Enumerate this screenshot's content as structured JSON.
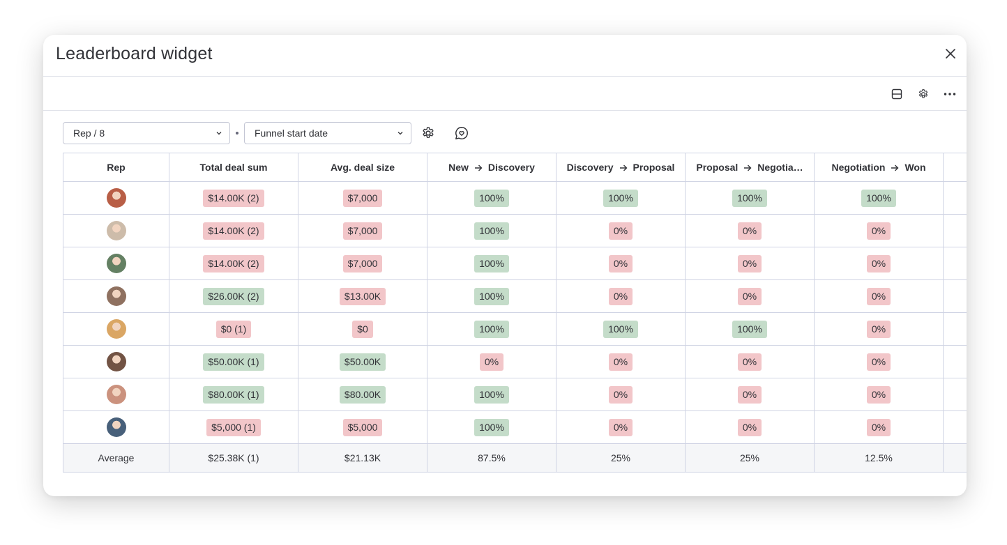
{
  "window": {
    "title": "Leaderboard widget"
  },
  "toolbar": {
    "icons": [
      "layout-icon",
      "gear-icon",
      "more-icon"
    ]
  },
  "filters": {
    "group_by": "Rep / 8",
    "date_field": "Funnel start date"
  },
  "table": {
    "headers": {
      "rep": "Rep",
      "total": "Total deal sum",
      "avg": "Avg. deal size",
      "s1_from": "New",
      "s1_to": "Discovery",
      "s2_from": "Discovery",
      "s2_to": "Proposal",
      "s3_from": "Proposal",
      "s3_to": "Negotia…",
      "s4_from": "Negotiation",
      "s4_to": "Won"
    },
    "rows": [
      {
        "avatar": "#b5563d",
        "total": "$14.00K (2)",
        "total_status": "red",
        "avg": "$7,000",
        "avg_status": "red",
        "s1": "100%",
        "s1_status": "green",
        "s2": "100%",
        "s2_status": "green",
        "s3": "100%",
        "s3_status": "green",
        "s4": "100%",
        "s4_status": "green"
      },
      {
        "avatar": "#cbb9a6",
        "total": "$14.00K (2)",
        "total_status": "red",
        "avg": "$7,000",
        "avg_status": "red",
        "s1": "100%",
        "s1_status": "green",
        "s2": "0%",
        "s2_status": "red",
        "s3": "0%",
        "s3_status": "red",
        "s4": "0%",
        "s4_status": "red"
      },
      {
        "avatar": "#5c7a5b",
        "total": "$14.00K (2)",
        "total_status": "red",
        "avg": "$7,000",
        "avg_status": "red",
        "s1": "100%",
        "s1_status": "green",
        "s2": "0%",
        "s2_status": "red",
        "s3": "0%",
        "s3_status": "red",
        "s4": "0%",
        "s4_status": "red"
      },
      {
        "avatar": "#8a6a58",
        "total": "$26.00K (2)",
        "total_status": "green",
        "avg": "$13.00K",
        "avg_status": "red",
        "s1": "100%",
        "s1_status": "green",
        "s2": "0%",
        "s2_status": "red",
        "s3": "0%",
        "s3_status": "red",
        "s4": "0%",
        "s4_status": "red"
      },
      {
        "avatar": "#d9a25c",
        "total": "$0 (1)",
        "total_status": "red",
        "avg": "$0",
        "avg_status": "red",
        "s1": "100%",
        "s1_status": "green",
        "s2": "100%",
        "s2_status": "green",
        "s3": "100%",
        "s3_status": "green",
        "s4": "0%",
        "s4_status": "red"
      },
      {
        "avatar": "#6b4a3a",
        "total": "$50.00K (1)",
        "total_status": "green",
        "avg": "$50.00K",
        "avg_status": "green",
        "s1": "0%",
        "s1_status": "red",
        "s2": "0%",
        "s2_status": "red",
        "s3": "0%",
        "s3_status": "red",
        "s4": "0%",
        "s4_status": "red"
      },
      {
        "avatar": "#c98d78",
        "total": "$80.00K (1)",
        "total_status": "green",
        "avg": "$80.00K",
        "avg_status": "green",
        "s1": "100%",
        "s1_status": "green",
        "s2": "0%",
        "s2_status": "red",
        "s3": "0%",
        "s3_status": "red",
        "s4": "0%",
        "s4_status": "red"
      },
      {
        "avatar": "#3f5873",
        "total": "$5,000 (1)",
        "total_status": "red",
        "avg": "$5,000",
        "avg_status": "red",
        "s1": "100%",
        "s1_status": "green",
        "s2": "0%",
        "s2_status": "red",
        "s3": "0%",
        "s3_status": "red",
        "s4": "0%",
        "s4_status": "red"
      }
    ],
    "average": {
      "label": "Average",
      "total": "$25.38K (1)",
      "avg": "$21.13K",
      "s1": "87.5%",
      "s2": "25%",
      "s3": "25%",
      "s4": "12.5%"
    }
  },
  "colors": {
    "good": "#c4dcc9",
    "bad": "#f2c6c9",
    "border": "#d0d4e4"
  }
}
